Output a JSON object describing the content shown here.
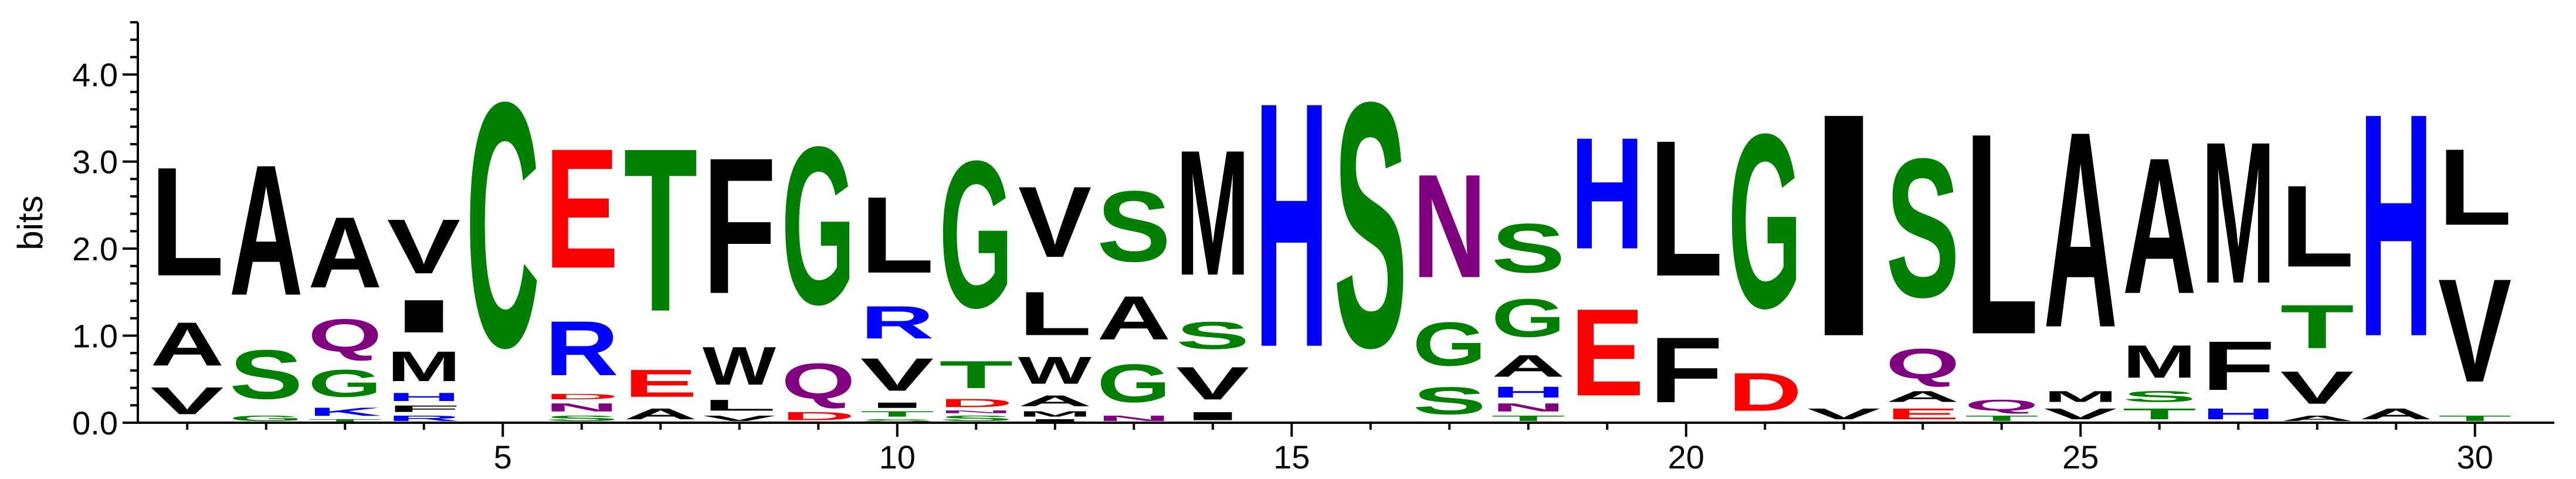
{
  "chart_data": {
    "type": "sequence-logo",
    "ylabel": "bits",
    "ylim": [
      0,
      4.6
    ],
    "yticks": [
      {
        "value": 0.0,
        "label": "0.0"
      },
      {
        "value": 1.0,
        "label": "1.0"
      },
      {
        "value": 2.0,
        "label": "2.0"
      },
      {
        "value": 3.0,
        "label": "3.0"
      },
      {
        "value": 4.0,
        "label": "4.0"
      }
    ],
    "xticks": [
      {
        "value": 5,
        "label": "5"
      },
      {
        "value": 10,
        "label": "10"
      },
      {
        "value": 15,
        "label": "15"
      },
      {
        "value": 20,
        "label": "20"
      },
      {
        "value": 25,
        "label": "25"
      },
      {
        "value": 30,
        "label": "30"
      }
    ],
    "colors": {
      "black": "#000000",
      "green": "#008000",
      "red": "#ff0000",
      "blue": "#0000ff",
      "purple": "#800080"
    },
    "positions": [
      {
        "pos": 1,
        "letters": [
          [
            "V",
            0.5,
            "black"
          ],
          [
            "A",
            0.8,
            "black"
          ],
          [
            "L",
            2.0,
            "black"
          ]
        ]
      },
      {
        "pos": 2,
        "letters": [
          [
            "G",
            0.1,
            "green"
          ],
          [
            "S",
            0.9,
            "green"
          ],
          [
            "A",
            2.4,
            "black"
          ]
        ]
      },
      {
        "pos": 3,
        "letters": [
          [
            "T",
            0.05,
            "green"
          ],
          [
            "K",
            0.15,
            "blue"
          ],
          [
            "G",
            0.5,
            "green"
          ],
          [
            "Q",
            0.6,
            "purple"
          ],
          [
            "A",
            1.3,
            "black"
          ]
        ]
      },
      {
        "pos": 4,
        "letters": [
          [
            "R",
            0.1,
            "blue"
          ],
          [
            "F",
            0.12,
            "black"
          ],
          [
            "H",
            0.15,
            "blue"
          ],
          [
            "M",
            0.55,
            "black"
          ],
          [
            "I",
            0.6,
            "black"
          ],
          [
            "V",
            1.0,
            "black"
          ]
        ]
      },
      {
        "pos": 5,
        "letters": [
          [
            "C",
            4.5,
            "green"
          ]
        ]
      },
      {
        "pos": 6,
        "letters": [
          [
            "S",
            0.1,
            "green"
          ],
          [
            "N",
            0.15,
            "purple"
          ],
          [
            "D",
            0.1,
            "red"
          ],
          [
            "R",
            1.0,
            "blue"
          ],
          [
            "E",
            2.2,
            "red"
          ]
        ]
      },
      {
        "pos": 7,
        "letters": [
          [
            "A",
            0.2,
            "black"
          ],
          [
            "E",
            0.5,
            "red"
          ],
          [
            "T",
            3.0,
            "green"
          ]
        ]
      },
      {
        "pos": 8,
        "letters": [
          [
            "V",
            0.1,
            "black"
          ],
          [
            "L",
            0.2,
            "black"
          ],
          [
            "W",
            0.7,
            "black"
          ],
          [
            "F",
            2.5,
            "black"
          ]
        ]
      },
      {
        "pos": 9,
        "letters": [
          [
            "D",
            0.15,
            "red"
          ],
          [
            "Q",
            0.65,
            "purple"
          ],
          [
            "G",
            2.9,
            "green"
          ]
        ]
      },
      {
        "pos": 10,
        "letters": [
          [
            "S",
            0.05,
            "green"
          ],
          [
            "T",
            0.1,
            "green"
          ],
          [
            "I",
            0.1,
            "black"
          ],
          [
            "V",
            0.6,
            "black"
          ],
          [
            "R",
            0.6,
            "blue"
          ],
          [
            "L",
            1.4,
            "black"
          ]
        ]
      },
      {
        "pos": 11,
        "letters": [
          [
            "S",
            0.1,
            "green"
          ],
          [
            "N",
            0.05,
            "purple"
          ],
          [
            "D",
            0.15,
            "red"
          ],
          [
            "T",
            0.5,
            "green"
          ],
          [
            "G",
            2.7,
            "green"
          ]
        ]
      },
      {
        "pos": 12,
        "letters": [
          [
            "I",
            0.05,
            "black"
          ],
          [
            "M",
            0.1,
            "black"
          ],
          [
            "A",
            0.2,
            "black"
          ],
          [
            "W",
            0.5,
            "black"
          ],
          [
            "L",
            0.8,
            "black"
          ],
          [
            "V",
            1.3,
            "black"
          ]
        ]
      },
      {
        "pos": 13,
        "letters": [
          [
            "N",
            0.1,
            "purple"
          ],
          [
            "G",
            0.7,
            "green"
          ],
          [
            "A",
            0.8,
            "black"
          ],
          [
            "S",
            1.3,
            "green"
          ]
        ]
      },
      {
        "pos": 14,
        "letters": [
          [
            "I",
            0.15,
            "black"
          ],
          [
            "V",
            0.6,
            "black"
          ],
          [
            "S",
            0.5,
            "green"
          ],
          [
            "M",
            2.3,
            "black"
          ]
        ]
      },
      {
        "pos": 15,
        "letters": [
          [
            "H",
            4.5,
            "blue"
          ]
        ]
      },
      {
        "pos": 16,
        "letters": [
          [
            "S",
            4.5,
            "green"
          ]
        ]
      },
      {
        "pos": 17,
        "letters": [
          [
            "S",
            0.5,
            "green"
          ],
          [
            "G",
            0.8,
            "green"
          ],
          [
            "N",
            1.9,
            "purple"
          ]
        ]
      },
      {
        "pos": 18,
        "letters": [
          [
            "T",
            0.1,
            "green"
          ],
          [
            "N",
            0.15,
            "purple"
          ],
          [
            "H",
            0.2,
            "blue"
          ],
          [
            "A",
            0.4,
            "black"
          ],
          [
            "G",
            0.7,
            "green"
          ],
          [
            "S",
            0.9,
            "green"
          ]
        ]
      },
      {
        "pos": 19,
        "letters": [
          [
            "E",
            1.6,
            "red"
          ],
          [
            "H",
            2.05,
            "blue"
          ]
        ]
      },
      {
        "pos": 20,
        "letters": [
          [
            "F",
            1.2,
            "black"
          ],
          [
            "L",
            2.5,
            "black"
          ]
        ]
      },
      {
        "pos": 21,
        "letters": [
          [
            "D",
            0.7,
            "red"
          ],
          [
            "G",
            3.2,
            "green"
          ]
        ]
      },
      {
        "pos": 22,
        "letters": [
          [
            "V",
            0.2,
            "black"
          ],
          [
            "I",
            4.1,
            "black"
          ]
        ]
      },
      {
        "pos": 23,
        "letters": [
          [
            "E",
            0.2,
            "red"
          ],
          [
            "A",
            0.2,
            "black"
          ],
          [
            "Q",
            0.55,
            "purple"
          ],
          [
            "S",
            2.55,
            "green"
          ]
        ]
      },
      {
        "pos": 24,
        "letters": [
          [
            "T",
            0.1,
            "green"
          ],
          [
            "Q",
            0.2,
            "purple"
          ],
          [
            "L",
            3.7,
            "black"
          ]
        ]
      },
      {
        "pos": 25,
        "letters": [
          [
            "V",
            0.2,
            "black"
          ],
          [
            "M",
            0.2,
            "black"
          ],
          [
            "A",
            3.6,
            "black"
          ]
        ]
      },
      {
        "pos": 26,
        "letters": [
          [
            "T",
            0.2,
            "green"
          ],
          [
            "S",
            0.2,
            "green"
          ],
          [
            "M",
            0.6,
            "black"
          ],
          [
            "A",
            2.5,
            "black"
          ]
        ]
      },
      {
        "pos": 27,
        "letters": [
          [
            "H",
            0.2,
            "blue"
          ],
          [
            "F",
            0.9,
            "black"
          ],
          [
            "M",
            2.6,
            "black"
          ]
        ]
      },
      {
        "pos": 28,
        "letters": [
          [
            "A",
            0.1,
            "black"
          ],
          [
            "V",
            0.6,
            "black"
          ],
          [
            "T",
            0.8,
            "green"
          ],
          [
            "L",
            1.5,
            "black"
          ]
        ]
      },
      {
        "pos": 29,
        "letters": [
          [
            "A",
            0.2,
            "black"
          ],
          [
            "H",
            4.1,
            "blue"
          ]
        ]
      },
      {
        "pos": 30,
        "letters": [
          [
            "T",
            0.1,
            "green"
          ],
          [
            "V",
            1.9,
            "black"
          ],
          [
            "L",
            1.4,
            "black"
          ]
        ]
      }
    ]
  }
}
